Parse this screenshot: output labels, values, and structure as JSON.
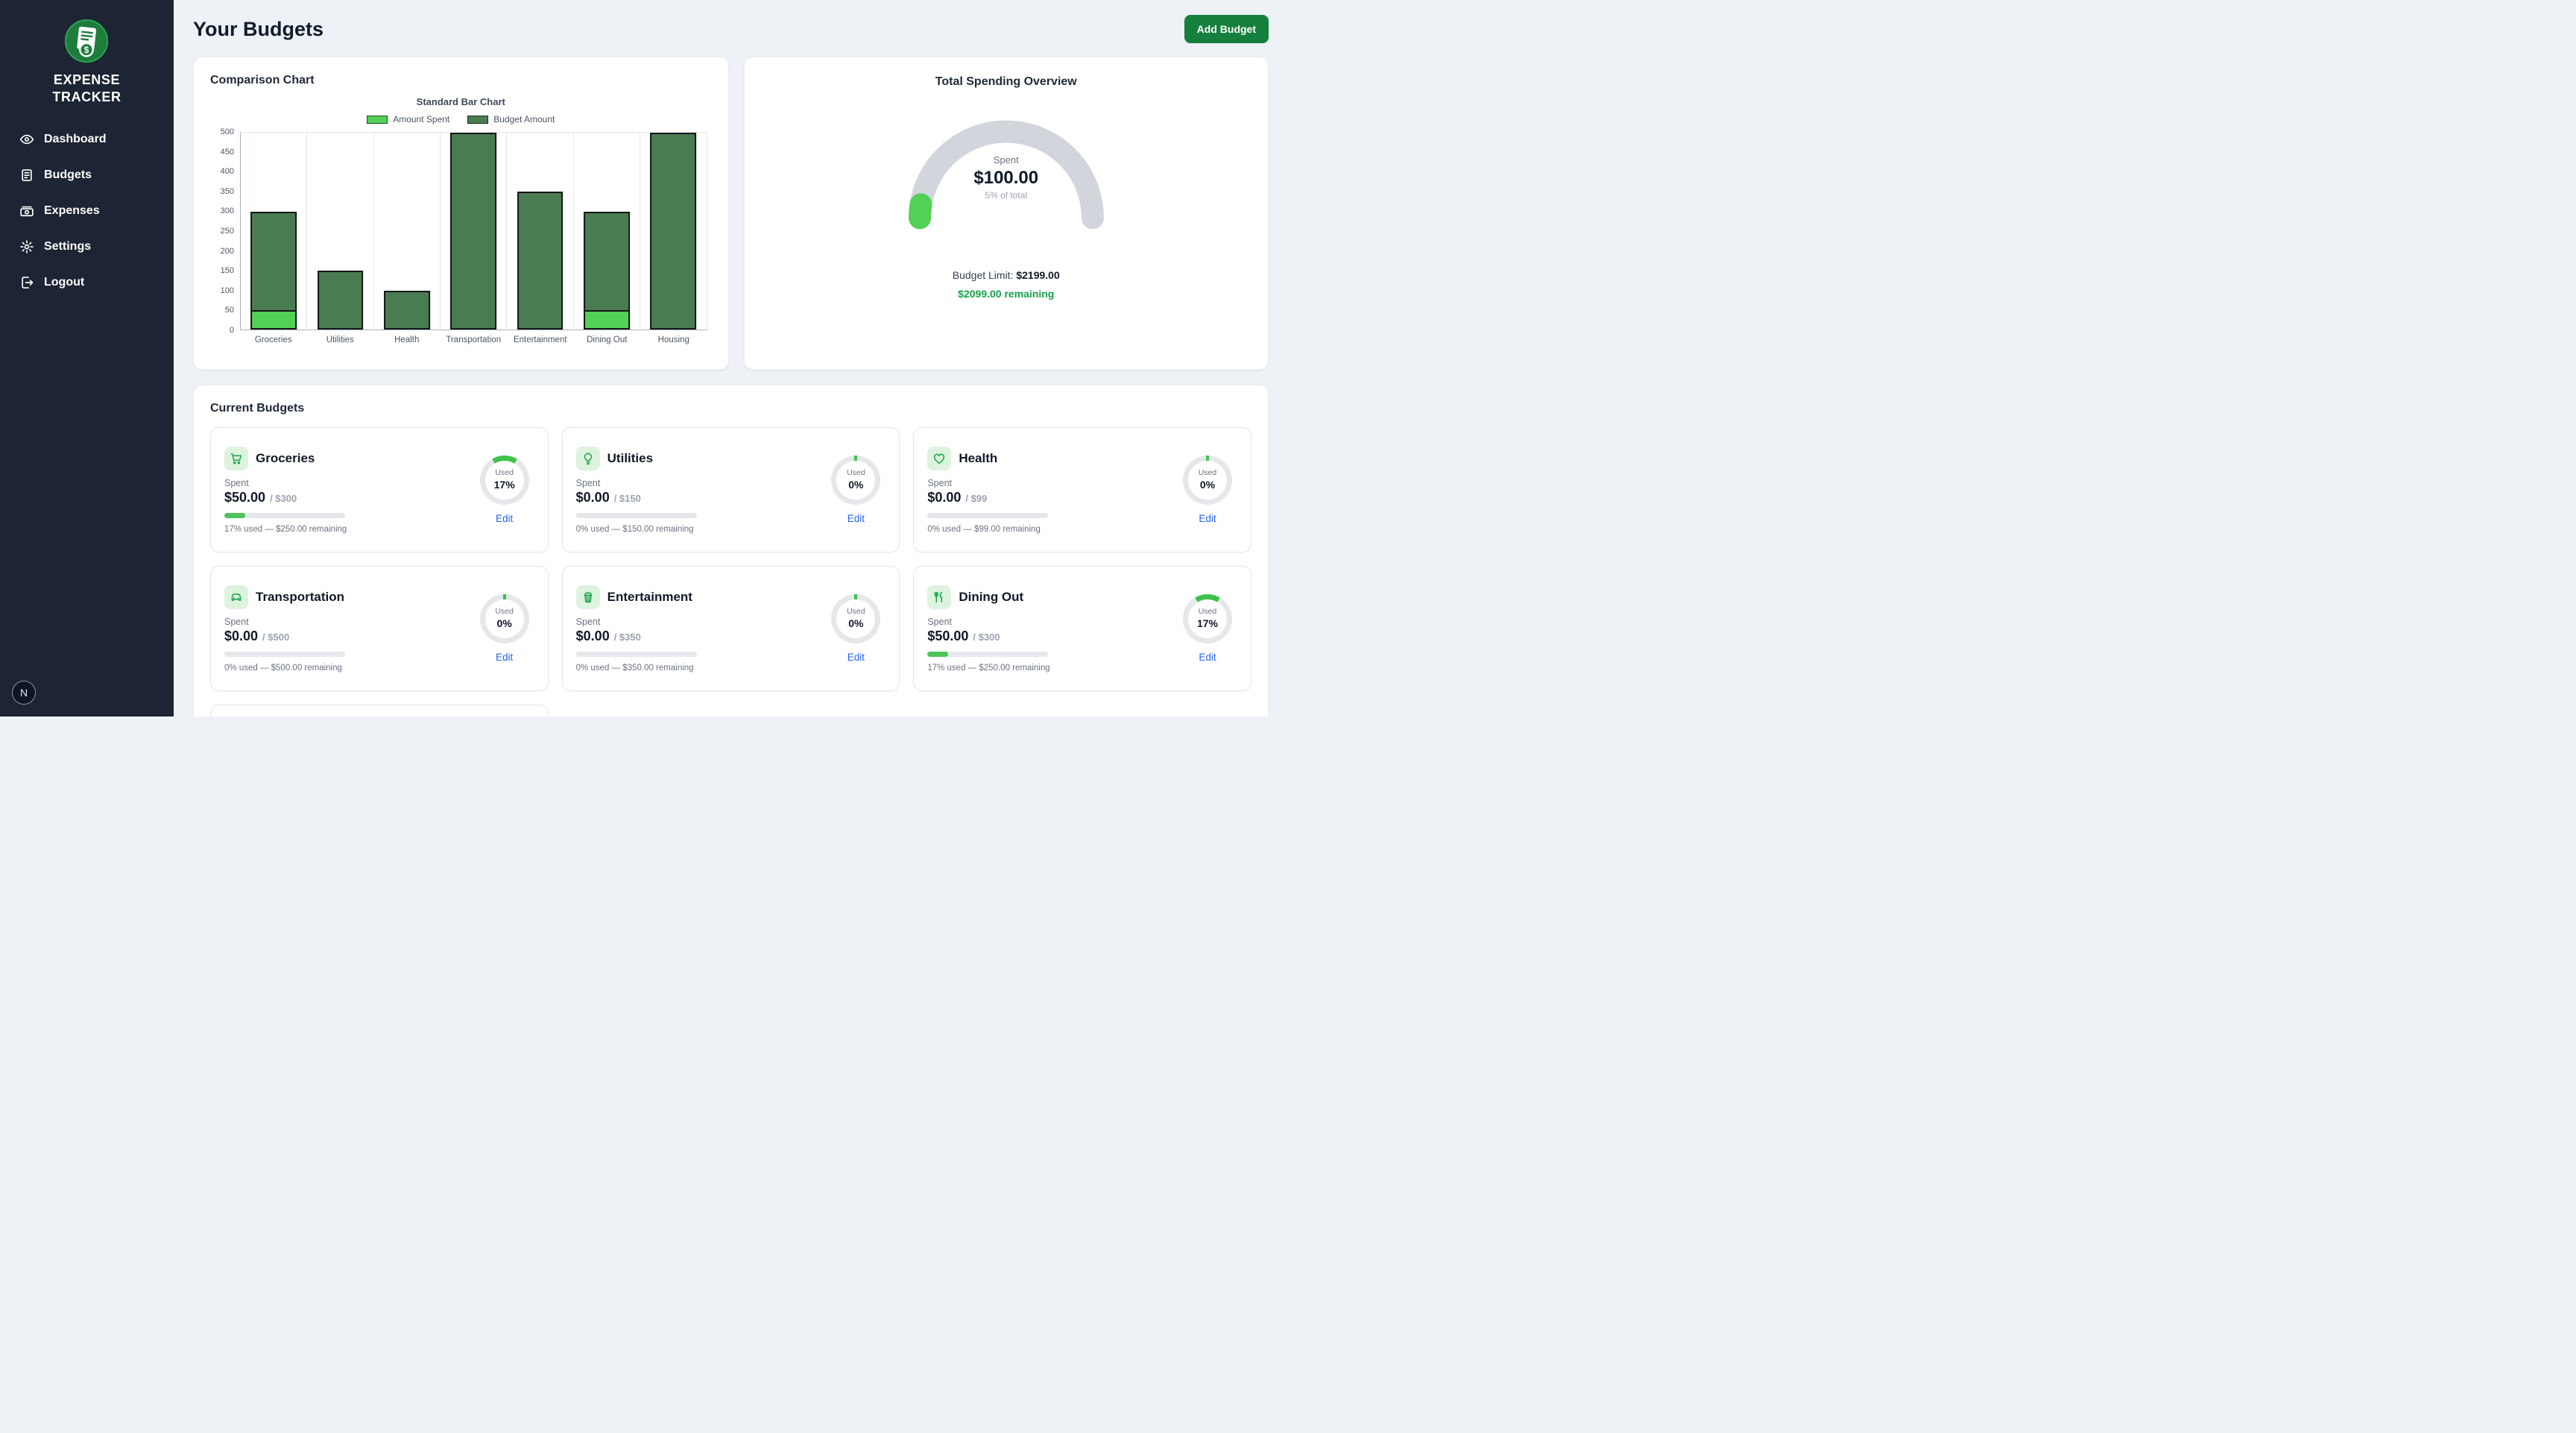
{
  "app": {
    "logo_line1": "EXPENSE",
    "logo_line2": "TRACKER",
    "avatar_initial": "N"
  },
  "sidebar": {
    "items": [
      {
        "label": "Dashboard",
        "icon": "dashboard"
      },
      {
        "label": "Budgets",
        "icon": "budgets"
      },
      {
        "label": "Expenses",
        "icon": "expenses"
      },
      {
        "label": "Settings",
        "icon": "settings"
      },
      {
        "label": "Logout",
        "icon": "logout"
      }
    ]
  },
  "header": {
    "title": "Your Budgets",
    "add_button_label": "Add Budget"
  },
  "comparison_card": {
    "title": "Comparison Chart"
  },
  "chart_data": {
    "type": "bar",
    "title": "Standard Bar Chart",
    "categories": [
      "Groceries",
      "Utilities",
      "Health",
      "Transportation",
      "Entertainment",
      "Dining Out",
      "Housing"
    ],
    "series": [
      {
        "name": "Amount Spent",
        "color": "#52d156",
        "values": [
          50,
          0,
          0,
          0,
          0,
          50,
          0
        ]
      },
      {
        "name": "Budget Amount",
        "color": "#4a7c52",
        "values": [
          300,
          150,
          99,
          500,
          350,
          300,
          500
        ]
      }
    ],
    "ylim": [
      0,
      500
    ],
    "ytick_step": 50,
    "legend_position": "top",
    "grid": "vertical"
  },
  "overview": {
    "title": "Total Spending Overview",
    "gauge_label": "Spent",
    "gauge_value": "$100.00",
    "gauge_sub": "5% of total",
    "gauge_percent": 5,
    "gauge_track_color": "#d2d6dc",
    "gauge_fill_color": "#52d156",
    "limit_label": "Budget Limit:",
    "limit_value": "$2199.00",
    "remaining_text": "$2099.00 remaining"
  },
  "budgets_section": {
    "title": "Current Budgets",
    "spent_label": "Spent",
    "used_label": "Used",
    "edit_label": "Edit",
    "cards": [
      {
        "name": "Groceries",
        "icon": "cart",
        "spent": "$50.00",
        "limit": "/ $300",
        "percent": 17,
        "used_text": "17%",
        "caption": "17% used — $250.00 remaining"
      },
      {
        "name": "Utilities",
        "icon": "bulb",
        "spent": "$0.00",
        "limit": "/ $150",
        "percent": 0,
        "used_text": "0%",
        "caption": "0% used — $150.00 remaining"
      },
      {
        "name": "Health",
        "icon": "heart",
        "spent": "$0.00",
        "limit": "/ $99",
        "percent": 0,
        "used_text": "0%",
        "caption": "0% used — $99.00 remaining"
      },
      {
        "name": "Transportation",
        "icon": "car",
        "spent": "$0.00",
        "limit": "/ $500",
        "percent": 0,
        "used_text": "0%",
        "caption": "0% used — $500.00 remaining"
      },
      {
        "name": "Entertainment",
        "icon": "popcorn",
        "spent": "$0.00",
        "limit": "/ $350",
        "percent": 0,
        "used_text": "0%",
        "caption": "0% used — $350.00 remaining"
      },
      {
        "name": "Dining Out",
        "icon": "utensils",
        "spent": "$50.00",
        "limit": "/ $300",
        "percent": 17,
        "used_text": "17%",
        "caption": "17% used — $250.00 remaining"
      }
    ]
  },
  "colors": {
    "sidebar_bg": "#1d2433",
    "accent_green": "#15803d",
    "spent_green": "#52d156",
    "budget_green": "#4a7c52",
    "donut_green": "#3fc24b",
    "remaining_green": "#16a34a",
    "edit_blue": "#2563eb"
  }
}
